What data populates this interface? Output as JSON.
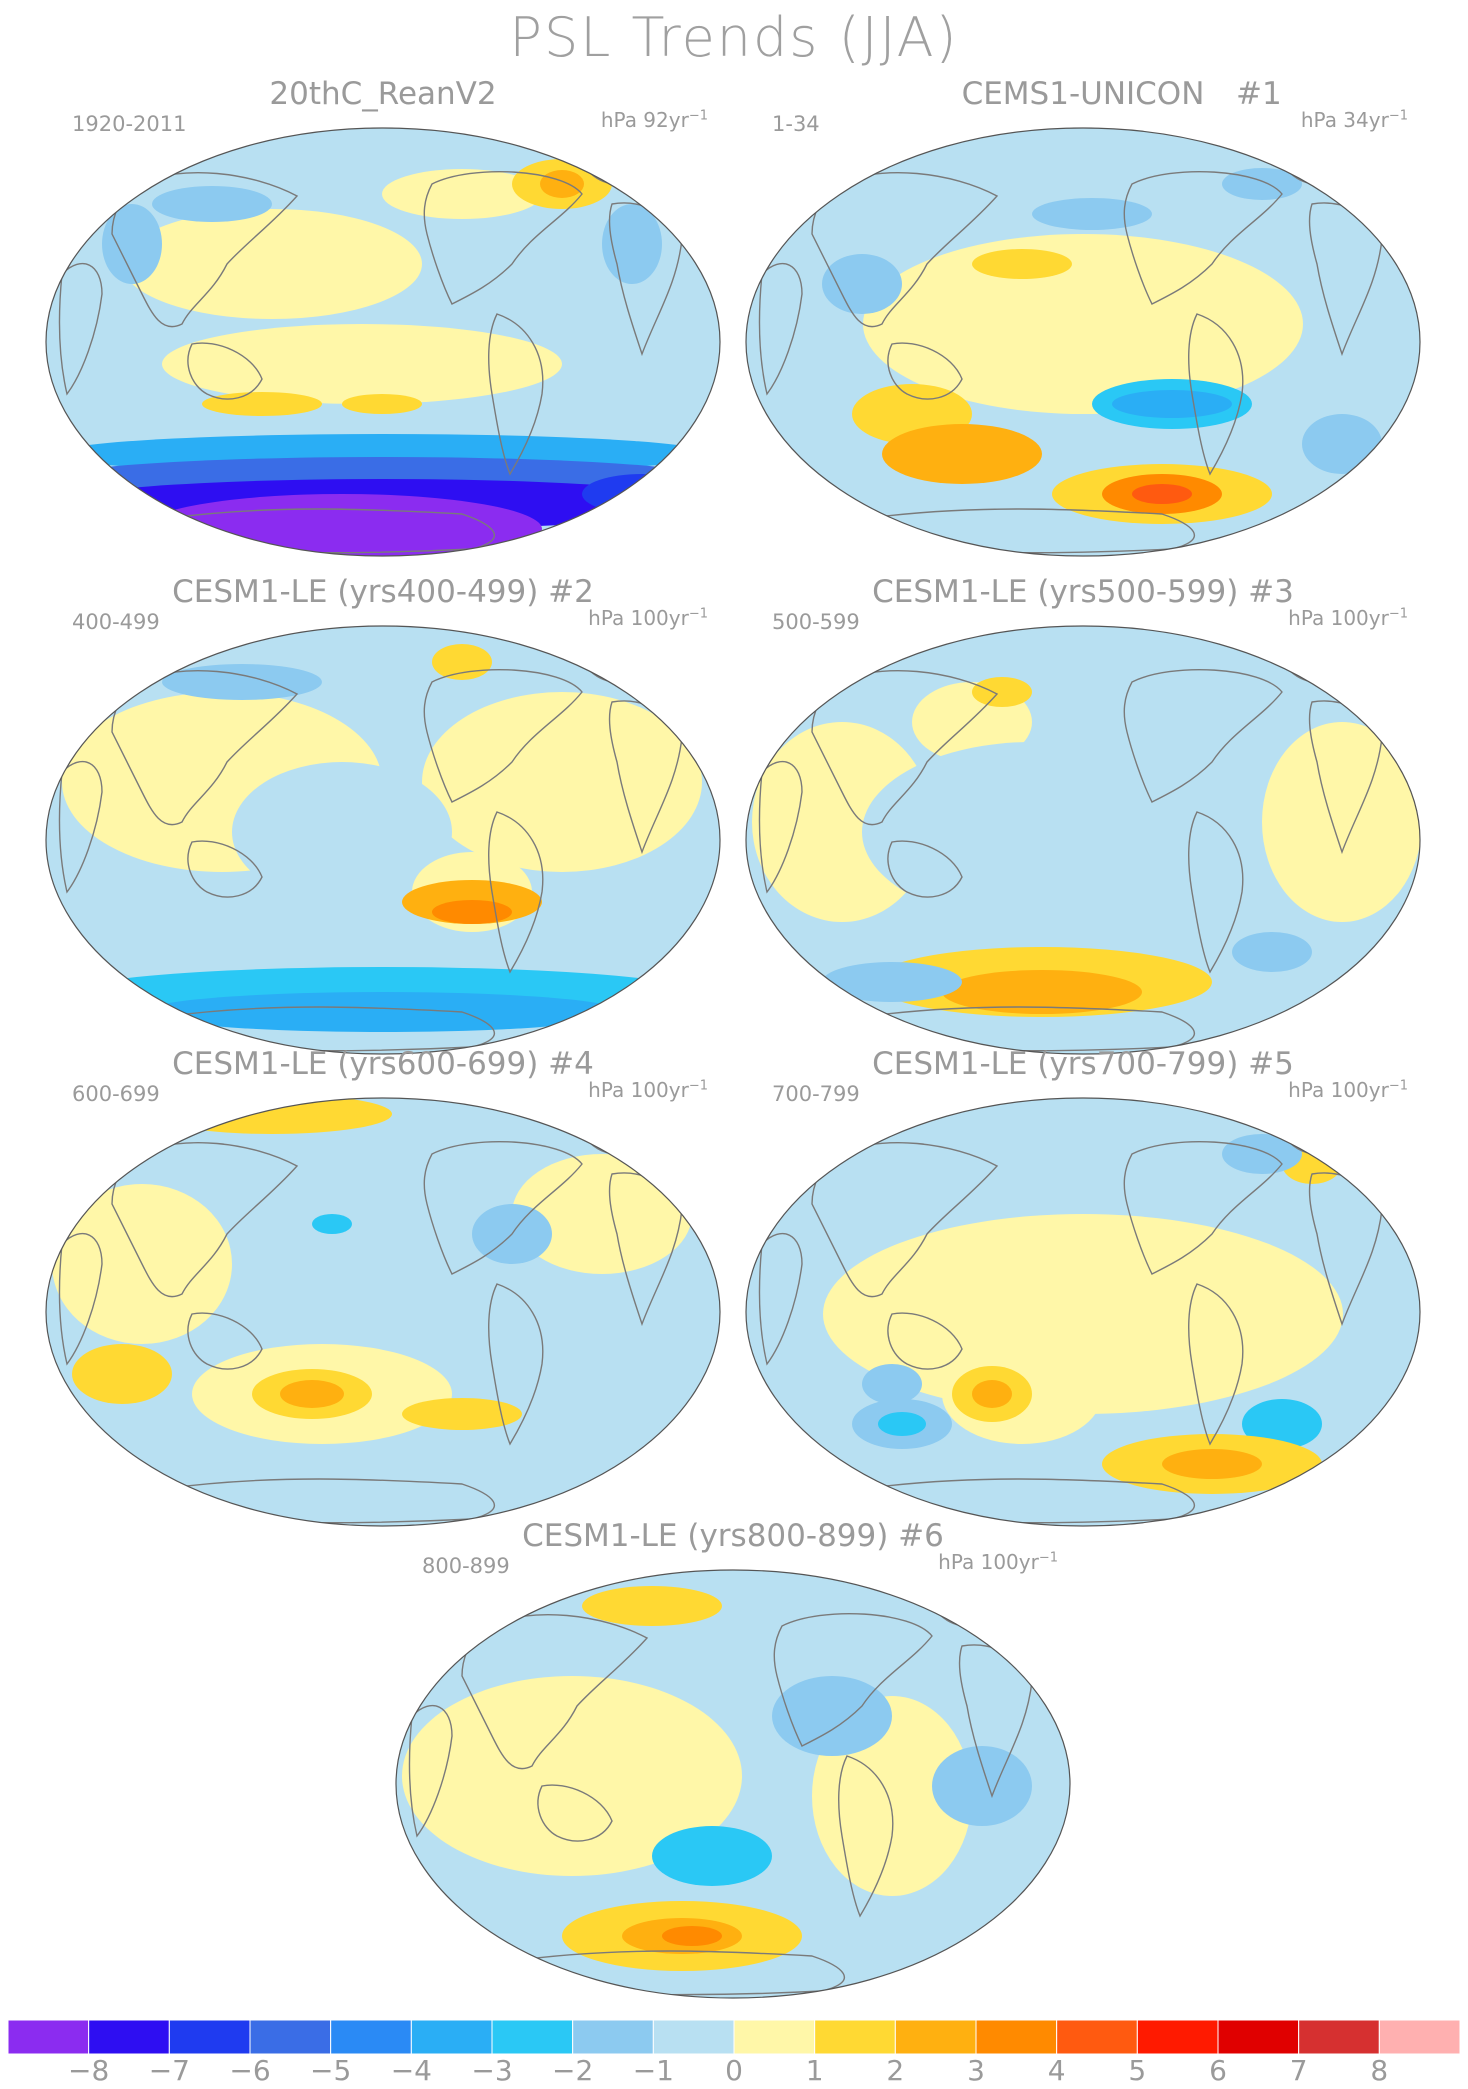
{
  "title": "PSL Trends (JJA)",
  "colors": {
    "land_outline": "#7a7a7a",
    "levels": [
      "#8b2cf0",
      "#2e0ef2",
      "#1f3bf0",
      "#3a6de6",
      "#2a8af5",
      "#2aaef5",
      "#2ac8f5",
      "#8ccaf0",
      "#b8e0f2",
      "#fff7a8",
      "#ffd933",
      "#ffb010",
      "#ff8a00",
      "#ff5a10",
      "#ff1a00",
      "#e00000",
      "#d63030",
      "#ffb0b0"
    ]
  },
  "colorbar": {
    "labels": [
      "−8",
      "−7",
      "−6",
      "−5",
      "−4",
      "−3",
      "−2",
      "−1",
      "0",
      "1",
      "2",
      "3",
      "4",
      "5",
      "6",
      "7",
      "8"
    ]
  },
  "panels": [
    {
      "title": "20thC_ReanV2",
      "tag": "",
      "years": "1920-2011",
      "units": "hPa 92yr",
      "units_exp": "−1"
    },
    {
      "title": "CEMS1-UNICON",
      "tag": "#1",
      "years": "1-34",
      "units": "hPa 34yr",
      "units_exp": "−1"
    },
    {
      "title": "CESM1-LE (yrs400-499) #2",
      "tag": "",
      "years": "400-499",
      "units": "hPa 100yr",
      "units_exp": "−1"
    },
    {
      "title": "CESM1-LE (yrs500-599) #3",
      "tag": "",
      "years": "500-599",
      "units": "hPa 100yr",
      "units_exp": "−1"
    },
    {
      "title": "CESM1-LE (yrs600-699) #4",
      "tag": "",
      "years": "600-699",
      "units": "hPa 100yr",
      "units_exp": "−1"
    },
    {
      "title": "CESM1-LE (yrs700-799) #5",
      "tag": "",
      "years": "700-799",
      "units": "hPa 100yr",
      "units_exp": "−1"
    },
    {
      "title": "CESM1-LE (yrs800-899) #6",
      "tag": "",
      "years": "800-899",
      "units": "hPa 100yr",
      "units_exp": "−1"
    }
  ]
}
